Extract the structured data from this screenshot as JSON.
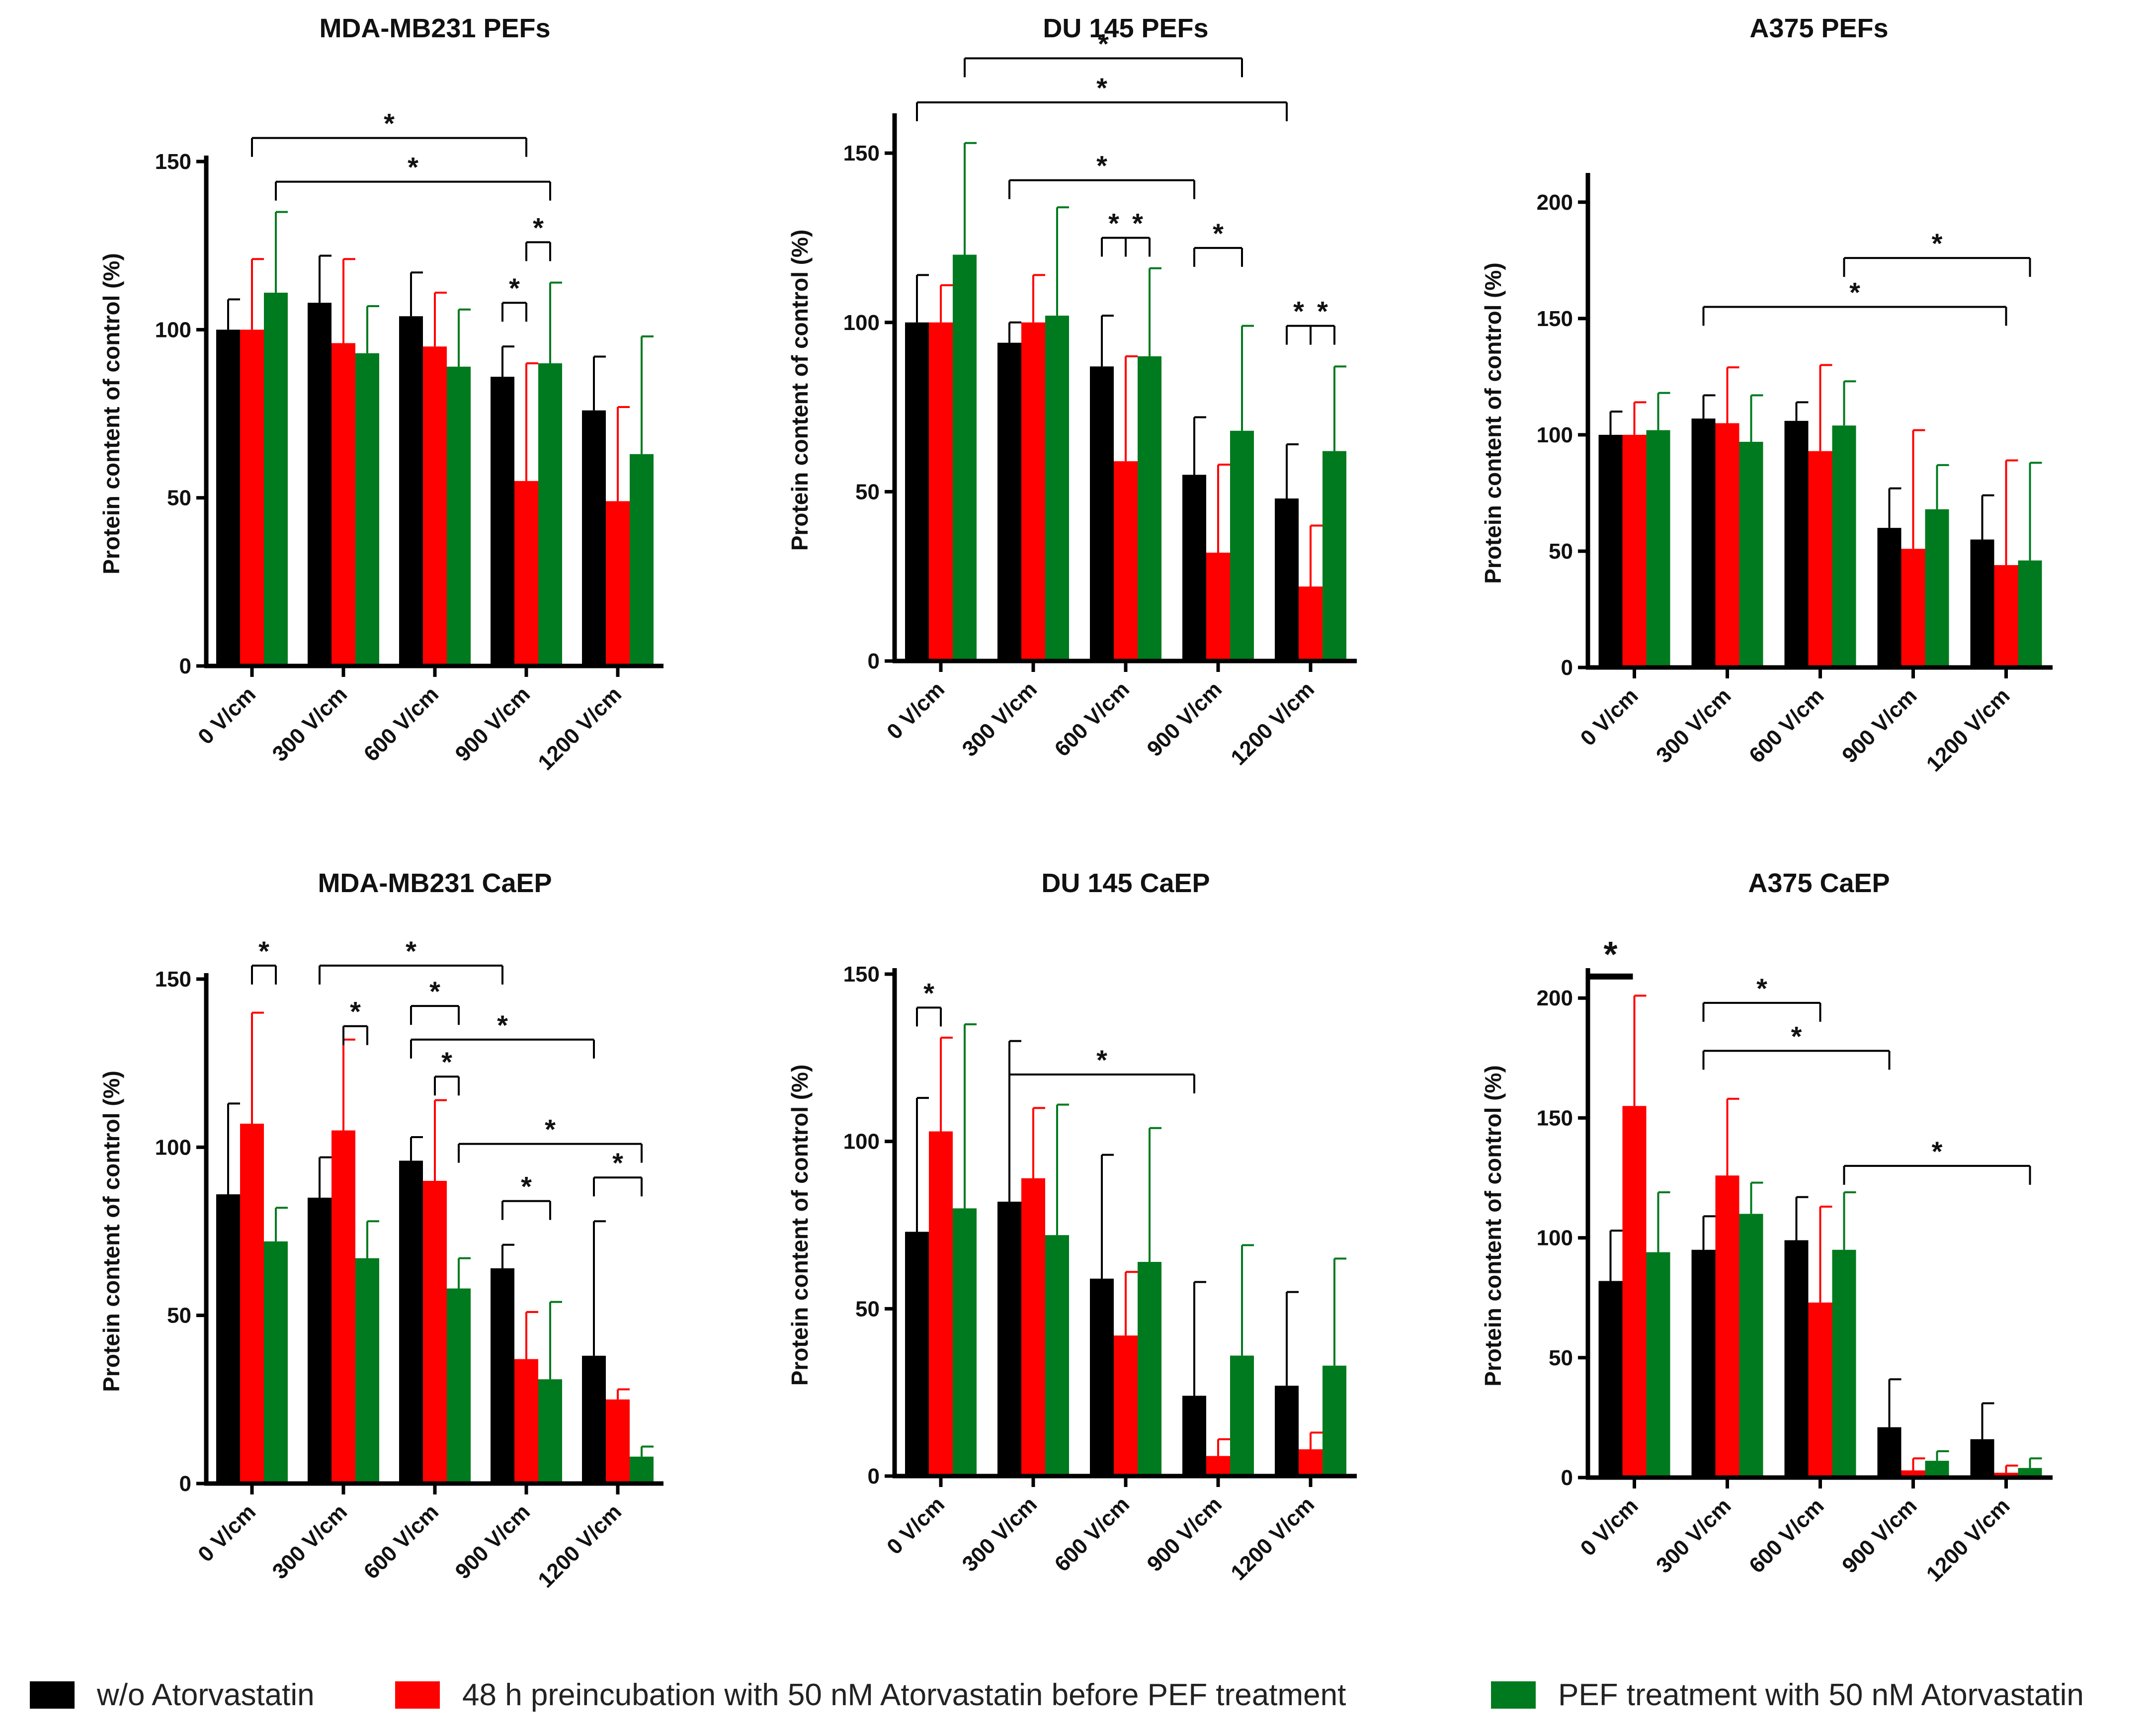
{
  "legend": {
    "items": [
      {
        "label": "w/o Atorvastatin",
        "color": "#000000"
      },
      {
        "label": "48 h preincubation with 50 nM Atorvastatin before PEF treatment",
        "color": "#ff0000"
      },
      {
        "label": "PEF treatment with 50 nM Atorvastatin",
        "color": "#007a1e"
      }
    ]
  },
  "chart_data": [
    {
      "type": "bar",
      "title": "MDA-MB231 PEFs",
      "ylabel": "Protein content of control (%)",
      "xlabel": "",
      "categories": [
        "0 V/cm",
        "300 V/cm",
        "600 V/cm",
        "900 V/cm",
        "1200 V/cm"
      ],
      "ylim": [
        0,
        150
      ],
      "yticks": [
        0,
        50,
        100,
        150
      ],
      "series": [
        {
          "name": "w/o Atorvastatin",
          "values": [
            100,
            108,
            104,
            86,
            76
          ],
          "errors": [
            9,
            14,
            13,
            9,
            16
          ]
        },
        {
          "name": "48 h preincubation with 50 nM Atorvastatin before PEF treatment",
          "values": [
            100,
            96,
            95,
            55,
            49
          ],
          "errors": [
            21,
            25,
            16,
            35,
            28
          ]
        },
        {
          "name": "PEF treatment with 50 nM Atorvastatin",
          "values": [
            111,
            93,
            89,
            90,
            63
          ],
          "errors": [
            24,
            14,
            17,
            24,
            35
          ]
        }
      ],
      "significance": [
        {
          "label": "*",
          "from": [
            0,
            1
          ],
          "to": [
            3,
            1
          ],
          "level": 157
        },
        {
          "label": "*",
          "from": [
            0,
            2
          ],
          "to": [
            3,
            2
          ],
          "level": 144
        },
        {
          "label": "*",
          "from": [
            3,
            1
          ],
          "to": [
            3,
            2
          ],
          "level": 126
        },
        {
          "label": "*",
          "from": [
            3,
            0
          ],
          "to": [
            3,
            1
          ],
          "level": 108
        }
      ]
    },
    {
      "type": "bar",
      "title": "DU 145 PEFs",
      "ylabel": "Protein content of control (%)",
      "xlabel": "",
      "categories": [
        "0 V/cm",
        "300 V/cm",
        "600 V/cm",
        "900 V/cm",
        "1200 V/cm"
      ],
      "ylim": [
        0,
        160
      ],
      "yticks": [
        0,
        50,
        100,
        150
      ],
      "series": [
        {
          "name": "w/o Atorvastatin",
          "values": [
            100,
            94,
            87,
            55,
            48
          ],
          "errors": [
            14,
            6,
            15,
            17,
            16
          ]
        },
        {
          "name": "48 h preincubation with 50 nM Atorvastatin before PEF treatment",
          "values": [
            100,
            100,
            59,
            32,
            22
          ],
          "errors": [
            11,
            14,
            31,
            26,
            18
          ]
        },
        {
          "name": "PEF treatment with 50 nM Atorvastatin",
          "values": [
            120,
            102,
            90,
            68,
            62
          ],
          "errors": [
            33,
            32,
            26,
            31,
            25
          ]
        }
      ],
      "significance": [
        {
          "label": "*",
          "from": [
            0,
            2
          ],
          "to": [
            3,
            2
          ],
          "level": 178
        },
        {
          "label": "*",
          "from": [
            0,
            0
          ],
          "to": [
            4,
            0
          ],
          "level": 165
        },
        {
          "label": "*",
          "from": [
            1,
            0
          ],
          "to": [
            3,
            0
          ],
          "level": 142
        },
        {
          "label": "*",
          "from": [
            2,
            0
          ],
          "to": [
            2,
            1
          ],
          "level": 125
        },
        {
          "label": "*",
          "from": [
            2,
            1
          ],
          "to": [
            2,
            2
          ],
          "level": 125
        },
        {
          "label": "*",
          "from": [
            3,
            0
          ],
          "to": [
            3,
            2
          ],
          "level": 122
        },
        {
          "label": "*",
          "from": [
            4,
            0
          ],
          "to": [
            4,
            1
          ],
          "level": 99
        },
        {
          "label": "*",
          "from": [
            4,
            1
          ],
          "to": [
            4,
            2
          ],
          "level": 99
        }
      ]
    },
    {
      "type": "bar",
      "title": "A375 PEFs",
      "ylabel": "Protein content of control (%)",
      "xlabel": "",
      "categories": [
        "0 V/cm",
        "300 V/cm",
        "600 V/cm",
        "900 V/cm",
        "1200 V/cm"
      ],
      "ylim": [
        0,
        210
      ],
      "yticks": [
        0,
        50,
        100,
        150,
        200
      ],
      "series": [
        {
          "name": "w/o Atorvastatin",
          "values": [
            100,
            107,
            106,
            60,
            55
          ],
          "errors": [
            10,
            10,
            8,
            17,
            19
          ]
        },
        {
          "name": "48 h preincubation with 50 nM Atorvastatin before PEF treatment",
          "values": [
            100,
            105,
            93,
            51,
            44
          ],
          "errors": [
            14,
            24,
            37,
            51,
            45
          ]
        },
        {
          "name": "PEF treatment with 50 nM Atorvastatin",
          "values": [
            102,
            97,
            104,
            68,
            46
          ],
          "errors": [
            16,
            20,
            19,
            19,
            42
          ]
        }
      ],
      "significance": [
        {
          "label": "*",
          "from": [
            2,
            2
          ],
          "to": [
            4,
            2
          ],
          "level": 176
        },
        {
          "label": "*",
          "from": [
            1,
            0
          ],
          "to": [
            4,
            1
          ],
          "level": 155
        }
      ]
    },
    {
      "type": "bar",
      "title": "MDA-MB231 CaEP",
      "ylabel": "Protein content of control (%)",
      "xlabel": "",
      "categories": [
        "0 V/cm",
        "300 V/cm",
        "600 V/cm",
        "900 V/cm",
        "1200 V/cm"
      ],
      "ylim": [
        0,
        150
      ],
      "yticks": [
        0,
        50,
        100,
        150
      ],
      "series": [
        {
          "name": "w/o Atorvastatin",
          "values": [
            86,
            85,
            96,
            64,
            38
          ],
          "errors": [
            27,
            12,
            7,
            7,
            40
          ]
        },
        {
          "name": "48 h preincubation with 50 nM Atorvastatin before PEF treatment",
          "values": [
            107,
            105,
            90,
            37,
            25
          ],
          "errors": [
            33,
            27,
            24,
            14,
            3
          ]
        },
        {
          "name": "PEF treatment with 50 nM Atorvastatin",
          "values": [
            72,
            67,
            58,
            31,
            8
          ],
          "errors": [
            10,
            11,
            9,
            23,
            3
          ]
        }
      ],
      "significance": [
        {
          "label": "*",
          "from": [
            0,
            1
          ],
          "to": [
            0,
            2
          ],
          "level": 154
        },
        {
          "label": "*",
          "from": [
            1,
            0
          ],
          "to": [
            3,
            0
          ],
          "level": 154
        },
        {
          "label": "*",
          "from": [
            1,
            1
          ],
          "to": [
            1,
            2
          ],
          "level": 136
        },
        {
          "label": "*",
          "from": [
            2,
            0
          ],
          "to": [
            2,
            2
          ],
          "level": 142
        },
        {
          "label": "*",
          "from": [
            2,
            0
          ],
          "to": [
            4,
            0
          ],
          "level": 132
        },
        {
          "label": "*",
          "from": [
            2,
            1
          ],
          "to": [
            2,
            2
          ],
          "level": 121
        },
        {
          "label": "*",
          "from": [
            2,
            2
          ],
          "to": [
            4,
            2
          ],
          "level": 101
        },
        {
          "label": "*",
          "from": [
            4,
            0
          ],
          "to": [
            4,
            2
          ],
          "level": 91
        },
        {
          "label": "*",
          "from": [
            3,
            0
          ],
          "to": [
            3,
            2
          ],
          "level": 84
        }
      ]
    },
    {
      "type": "bar",
      "title": "DU 145 CaEP",
      "ylabel": "Protein content of control (%)",
      "xlabel": "",
      "categories": [
        "0 V/cm",
        "300 V/cm",
        "600 V/cm",
        "900 V/cm",
        "1200 V/cm"
      ],
      "ylim": [
        0,
        150
      ],
      "yticks": [
        0,
        50,
        100,
        150
      ],
      "series": [
        {
          "name": "w/o Atorvastatin",
          "values": [
            73,
            82,
            59,
            24,
            27
          ],
          "errors": [
            40,
            48,
            37,
            34,
            28
          ]
        },
        {
          "name": "48 h preincubation with 50 nM Atorvastatin before PEF treatment",
          "values": [
            103,
            89,
            42,
            6,
            8
          ],
          "errors": [
            28,
            21,
            19,
            5,
            5
          ]
        },
        {
          "name": "PEF treatment with 50 nM Atorvastatin",
          "values": [
            80,
            72,
            64,
            36,
            33
          ],
          "errors": [
            55,
            39,
            40,
            33,
            32
          ]
        }
      ],
      "significance": [
        {
          "label": "*",
          "from": [
            0,
            0
          ],
          "to": [
            0,
            1
          ],
          "level": 140
        },
        {
          "label": "*",
          "from": [
            1,
            0
          ],
          "to": [
            3,
            0
          ],
          "level": 120
        }
      ]
    },
    {
      "type": "bar",
      "title": "A375 CaEP",
      "ylabel": "Protein content of control (%)",
      "xlabel": "",
      "categories": [
        "0 V/cm",
        "300 V/cm",
        "600 V/cm",
        "900 V/cm",
        "1200 V/cm"
      ],
      "ylim": [
        0,
        210
      ],
      "yticks": [
        0,
        50,
        100,
        150,
        200
      ],
      "series": [
        {
          "name": "w/o Atorvastatin",
          "values": [
            82,
            95,
            99,
            21,
            16
          ],
          "errors": [
            21,
            14,
            18,
            20,
            15
          ]
        },
        {
          "name": "48 h preincubation with 50 nM Atorvastatin before PEF treatment",
          "values": [
            155,
            126,
            73,
            3,
            2
          ],
          "errors": [
            46,
            32,
            40,
            5,
            3
          ]
        },
        {
          "name": "PEF treatment with 50 nM Atorvastatin",
          "values": [
            94,
            110,
            95,
            7,
            4
          ],
          "errors": [
            25,
            13,
            24,
            4,
            4
          ]
        }
      ],
      "significance": [
        {
          "label": "*",
          "from": [
            0,
            0
          ],
          "to": [
            0,
            0
          ],
          "level": 209,
          "bar": true
        },
        {
          "label": "*",
          "from": [
            1,
            0
          ],
          "to": [
            2,
            1
          ],
          "level": 198
        },
        {
          "label": "*",
          "from": [
            1,
            0
          ],
          "to": [
            3,
            0
          ],
          "level": 178
        },
        {
          "label": "*",
          "from": [
            2,
            2
          ],
          "to": [
            4,
            2
          ],
          "level": 130
        }
      ]
    }
  ]
}
